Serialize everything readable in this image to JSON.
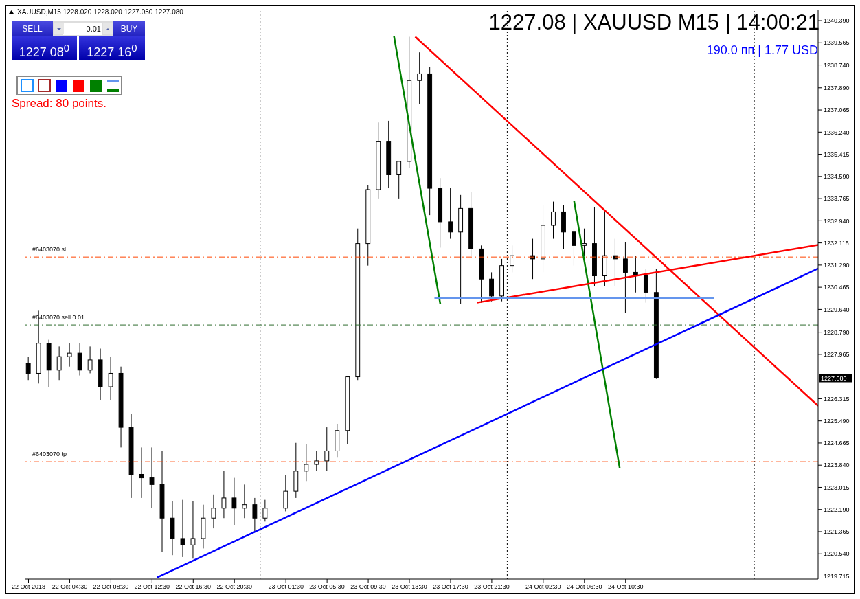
{
  "chart_data": {
    "type": "candlestick",
    "title": "XAUUSD,M15  1228.020 1228.020 1227.050 1227.080",
    "annotations": [
      "1227.08 | XAUUSD M15 | 14:00:21",
      "190.0 пп | 1.77 USD",
      "SELL",
      "0.01",
      "BUY",
      "1227 08$^{0}$",
      "1227 16$^{0}$",
      "Spread: 80 points."
    ],
    "x": [
      "2018-10-22T00:30",
      "2018-10-22T01:30",
      "2018-10-22T02:30",
      "2018-10-22T03:30",
      "2018-10-22T04:30",
      "2018-10-22T05:30",
      "2018-10-22T06:30",
      "2018-10-22T07:30",
      "2018-10-22T08:30",
      "2018-10-22T09:30",
      "2018-10-22T10:30",
      "2018-10-22T11:30",
      "2018-10-22T12:30",
      "2018-10-22T13:30",
      "2018-10-22T14:30",
      "2018-10-22T15:30",
      "2018-10-22T16:30",
      "2018-10-22T17:30",
      "2018-10-22T18:30",
      "2018-10-22T19:30",
      "2018-10-22T20:30",
      "2018-10-22T21:30",
      "2018-10-22T22:30",
      "2018-10-22T23:30",
      "2018-10-23T01:30",
      "2018-10-23T02:30",
      "2018-10-23T03:30",
      "2018-10-23T04:30",
      "2018-10-23T05:30",
      "2018-10-23T06:30",
      "2018-10-23T07:30",
      "2018-10-23T08:30",
      "2018-10-23T09:30",
      "2018-10-23T10:30",
      "2018-10-23T11:30",
      "2018-10-23T12:30",
      "2018-10-23T13:30",
      "2018-10-23T14:30",
      "2018-10-23T15:30",
      "2018-10-23T16:30",
      "2018-10-23T17:30",
      "2018-10-23T18:30",
      "2018-10-23T19:30",
      "2018-10-23T20:30",
      "2018-10-23T21:30",
      "2018-10-23T22:30",
      "2018-10-23T23:30",
      "2018-10-24T01:30",
      "2018-10-24T02:30",
      "2018-10-24T03:30",
      "2018-10-24T04:30",
      "2018-10-24T05:30",
      "2018-10-24T06:30",
      "2018-10-24T07:30",
      "2018-10-24T08:30",
      "2018-10-24T09:30",
      "2018-10-24T10:30",
      "2018-10-24T11:30",
      "2018-10-24T12:30",
      "2018-10-24T13:30"
    ],
    "ohlc": [
      [
        1227.63,
        1227.88,
        1227.01,
        1227.26
      ],
      [
        1227.26,
        1229.59,
        1226.88,
        1228.38
      ],
      [
        1228.38,
        1228.51,
        1226.76,
        1227.38
      ],
      [
        1227.38,
        1228.26,
        1227.01,
        1227.88
      ],
      [
        1227.88,
        1228.38,
        1227.51,
        1228.01
      ],
      [
        1228.01,
        1228.38,
        1227.18,
        1227.38
      ],
      [
        1227.38,
        1228.26,
        1227.26,
        1227.76
      ],
      [
        1227.76,
        1228.18,
        1226.26,
        1226.76
      ],
      [
        1226.76,
        1227.88,
        1226.26,
        1227.26
      ],
      [
        1227.26,
        1227.51,
        1224.5,
        1225.25
      ],
      [
        1225.25,
        1225.75,
        1222.62,
        1223.5
      ],
      [
        1223.5,
        1224.5,
        1222.62,
        1223.37
      ],
      [
        1223.37,
        1224.5,
        1222.24,
        1223.12
      ],
      [
        1223.12,
        1224.37,
        1220.61,
        1221.87
      ],
      [
        1221.87,
        1222.5,
        1220.49,
        1221.11
      ],
      [
        1221.11,
        1222.55,
        1220.42,
        1220.87
      ],
      [
        1220.87,
        1222.5,
        1220.36,
        1221.11
      ],
      [
        1221.11,
        1222.37,
        1220.74,
        1221.87
      ],
      [
        1221.87,
        1222.75,
        1221.49,
        1222.24
      ],
      [
        1222.24,
        1223.62,
        1221.87,
        1222.62
      ],
      [
        1222.62,
        1223.37,
        1221.62,
        1222.24
      ],
      [
        1222.24,
        1223.12,
        1221.87,
        1222.37
      ],
      [
        1222.37,
        1222.62,
        1221.37,
        1221.87
      ],
      [
        1221.87,
        1222.55,
        1221.74,
        1222.24
      ],
      [
        1222.24,
        1223.47,
        1222.12,
        1222.87
      ],
      [
        1222.87,
        1224.67,
        1222.62,
        1223.62
      ],
      [
        1223.62,
        1224.62,
        1223.25,
        1223.87
      ],
      [
        1223.87,
        1224.37,
        1223.62,
        1224.0
      ],
      [
        1224.0,
        1225.25,
        1223.62,
        1224.37
      ],
      [
        1224.37,
        1225.38,
        1224.12,
        1225.13
      ],
      [
        1225.13,
        1227.13,
        1224.62,
        1227.13
      ],
      [
        1227.13,
        1232.65,
        1227.01,
        1232.09
      ],
      [
        1232.09,
        1234.27,
        1231.27,
        1234.1
      ],
      [
        1234.1,
        1236.6,
        1233.77,
        1235.9
      ],
      [
        1235.9,
        1236.66,
        1234.15,
        1234.65
      ],
      [
        1234.65,
        1235.15,
        1233.77,
        1235.15
      ],
      [
        1235.15,
        1239.79,
        1234.9,
        1238.16
      ],
      [
        1238.16,
        1239.21,
        1237.28,
        1238.41
      ],
      [
        1238.41,
        1238.66,
        1233.15,
        1234.15
      ],
      [
        1234.15,
        1234.53,
        1231.94,
        1232.9
      ],
      [
        1232.9,
        1234.15,
        1232.27,
        1232.52
      ],
      [
        1232.52,
        1233.9,
        1229.84,
        1233.4
      ],
      [
        1233.4,
        1234.02,
        1231.64,
        1231.89
      ],
      [
        1231.89,
        1232.02,
        1229.89,
        1230.77
      ],
      [
        1230.77,
        1231.02,
        1229.94,
        1230.14
      ],
      [
        1230.14,
        1231.52,
        1229.94,
        1231.27
      ],
      [
        1231.27,
        1232.02,
        1231.02,
        1231.64
      ],
      [
        1231.64,
        1232.27,
        1230.77,
        1231.52
      ],
      [
        1231.52,
        1233.52,
        1231.02,
        1232.77
      ],
      [
        1232.77,
        1233.65,
        1232.27,
        1233.27
      ],
      [
        1233.27,
        1233.52,
        1231.89,
        1232.52
      ],
      [
        1232.52,
        1232.65,
        1231.27,
        1232.02
      ],
      [
        1232.02,
        1232.65,
        1231.64,
        1232.09
      ],
      [
        1232.09,
        1233.45,
        1230.52,
        1230.89
      ],
      [
        1230.89,
        1233.32,
        1230.52,
        1231.64
      ],
      [
        1231.64,
        1232.27,
        1230.52,
        1231.52
      ],
      [
        1231.52,
        1232.14,
        1229.52,
        1231.02
      ],
      [
        1231.02,
        1231.64,
        1230.27,
        1230.89
      ],
      [
        1230.89,
        1231.14,
        1229.89,
        1230.27
      ],
      [
        1230.27,
        1231.14,
        1227.05,
        1227.08
      ]
    ],
    "series": [
      {
        "type": "line",
        "color": "#008000",
        "x": [
          "2018-10-23T12:00",
          "2018-10-23T16:30"
        ],
        "values": [
          1239.82,
          1229.84
        ]
      },
      {
        "type": "line",
        "color": "#008000",
        "x": [
          "2018-10-24T05:30",
          "2018-10-24T09:56"
        ],
        "values": [
          1233.67,
          1223.72
        ]
      },
      {
        "type": "line",
        "color": "#ff0000",
        "x": [
          "2018-10-23T14:04",
          "2018-10-25T05:12"
        ],
        "values": [
          1239.79,
          1226.05
        ]
      },
      {
        "type": "line",
        "color": "#ff0000",
        "x": [
          "2018-10-23T20:04",
          "2018-10-25T05:12"
        ],
        "values": [
          1229.89,
          1232.04
        ]
      },
      {
        "type": "line",
        "color": "#0000ff",
        "x": [
          "2018-10-22T13:00",
          "2018-10-25T05:12"
        ],
        "values": [
          1219.66,
          1231.16
        ]
      },
      {
        "type": "line",
        "color": "#6495ed",
        "x": [
          "2018-10-23T15:56",
          "2018-10-24T19:04"
        ],
        "values": [
          1230.06,
          1230.06
        ]
      }
    ],
    "ref_lines": [
      {
        "axis": "y",
        "value": 1231.59,
        "label": "#6403070 sl",
        "color": "#ff4500",
        "line_style": "dashed"
      },
      {
        "axis": "y",
        "value": 1229.06,
        "label": "#6403070 sell 0.01",
        "color": "#2e6b2e",
        "line_style": "dashed"
      },
      {
        "axis": "y",
        "value": 1223.97,
        "label": "#6403070 tp",
        "color": "#ff4500",
        "line_style": "dashed"
      },
      {
        "axis": "y",
        "value": 1227.08,
        "label": "1227.080",
        "color": "#ff4500",
        "line_style": "solid"
      },
      {
        "axis": "x",
        "value": "2018-10-22T23:00",
        "color": "#000000",
        "line_style": "dotted"
      },
      {
        "axis": "x",
        "value": "2018-10-23T23:00",
        "color": "#000000",
        "line_style": "dotted"
      },
      {
        "axis": "x",
        "value": "2018-10-24T23:00",
        "color": "#000000",
        "line_style": "dotted"
      }
    ],
    "xlim": [
      "2018-10-22T00:12",
      "2018-10-25T05:12"
    ],
    "xticks": [
      {
        "value": "2018-10-22T00:30",
        "label": "22 Oct 2018"
      },
      {
        "value": "2018-10-22T04:30",
        "label": "22 Oct 04:30"
      },
      {
        "value": "2018-10-22T08:30",
        "label": "22 Oct 08:30"
      },
      {
        "value": "2018-10-22T12:30",
        "label": "22 Oct 12:30"
      },
      {
        "value": "2018-10-22T16:30",
        "label": "22 Oct 16:30"
      },
      {
        "value": "2018-10-22T20:30",
        "label": "22 Oct 20:30"
      },
      {
        "value": "2018-10-23T01:30",
        "label": "23 Oct 01:30"
      },
      {
        "value": "2018-10-23T05:30",
        "label": "23 Oct 05:30"
      },
      {
        "value": "2018-10-23T09:30",
        "label": "23 Oct 09:30"
      },
      {
        "value": "2018-10-23T13:30",
        "label": "23 Oct 13:30"
      },
      {
        "value": "2018-10-23T17:30",
        "label": "23 Oct 17:30"
      },
      {
        "value": "2018-10-23T21:30",
        "label": "23 Oct 21:30"
      },
      {
        "value": "2018-10-24T02:30",
        "label": "24 Oct 02:30"
      },
      {
        "value": "2018-10-24T06:30",
        "label": "24 Oct 06:30"
      },
      {
        "value": "2018-10-24T10:30",
        "label": "24 Oct 10:30"
      }
    ],
    "ylim": [
      1219.6,
      1240.8
    ],
    "yticks": [
      {
        "value": 1240.39,
        "label": "1240.390"
      },
      {
        "value": 1239.565,
        "label": "1239.565"
      },
      {
        "value": 1238.74,
        "label": "1238.740"
      },
      {
        "value": 1237.89,
        "label": "1237.890"
      },
      {
        "value": 1237.065,
        "label": "1237.065"
      },
      {
        "value": 1236.24,
        "label": "1236.240"
      },
      {
        "value": 1235.415,
        "label": "1235.415"
      },
      {
        "value": 1234.59,
        "label": "1234.590"
      },
      {
        "value": 1233.765,
        "label": "1233.765"
      },
      {
        "value": 1232.94,
        "label": "1232.940"
      },
      {
        "value": 1232.115,
        "label": "1232.115"
      },
      {
        "value": 1231.29,
        "label": "1231.290"
      },
      {
        "value": 1230.465,
        "label": "1230.465"
      },
      {
        "value": 1229.64,
        "label": "1229.640"
      },
      {
        "value": 1228.79,
        "label": "1228.790"
      },
      {
        "value": 1227.965,
        "label": "1227.965"
      },
      {
        "value": 1226.315,
        "label": "1226.315"
      },
      {
        "value": 1225.49,
        "label": "1225.490"
      },
      {
        "value": 1224.665,
        "label": "1224.665"
      },
      {
        "value": 1223.84,
        "label": "1223.840"
      },
      {
        "value": 1223.015,
        "label": "1223.015"
      },
      {
        "value": 1222.19,
        "label": "1222.190"
      },
      {
        "value": 1221.365,
        "label": "1221.365"
      },
      {
        "value": 1220.54,
        "label": "1220.540"
      },
      {
        "value": 1219.715,
        "label": "1219.715"
      }
    ],
    "grid": false,
    "legend": false
  }
}
